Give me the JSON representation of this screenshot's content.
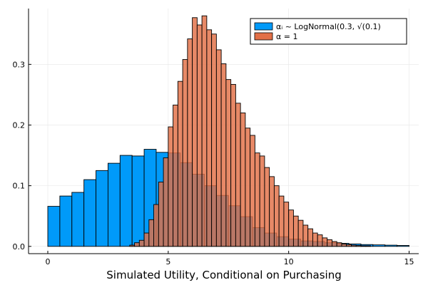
{
  "chart_data": {
    "type": "bar",
    "title": "",
    "xlabel": "Simulated Utility, Conditional on Purchasing",
    "ylabel": "",
    "xlim": [
      -0.8,
      15.4
    ],
    "ylim": [
      -0.012,
      0.392
    ],
    "xticks": [
      0,
      5,
      10,
      15
    ],
    "xtick_labels": [
      "0",
      "5",
      "10",
      "15"
    ],
    "yticks": [
      0.0,
      0.1,
      0.2,
      0.3
    ],
    "ytick_labels": [
      "0.0",
      "0.1",
      "0.2",
      "0.3"
    ],
    "grid": true,
    "legend_position": "top-right",
    "series": [
      {
        "name": "αᵢ ~ LogNormal(0.3, √(0.1)",
        "color": "#009af9",
        "bin_width": 0.5,
        "bin_start": 0.0,
        "values": [
          0.066,
          0.083,
          0.089,
          0.11,
          0.125,
          0.137,
          0.15,
          0.149,
          0.16,
          0.155,
          0.154,
          0.138,
          0.119,
          0.1,
          0.084,
          0.067,
          0.049,
          0.031,
          0.022,
          0.016,
          0.012,
          0.009,
          0.008,
          0.006,
          0.005,
          0.004,
          0.003,
          0.0025,
          0.002,
          0.0015
        ]
      },
      {
        "name": "α = 1",
        "color": "#e26f46",
        "bin_width": 0.2,
        "bin_start": 3.4,
        "values": [
          0.002,
          0.006,
          0.01,
          0.022,
          0.044,
          0.069,
          0.106,
          0.146,
          0.197,
          0.233,
          0.272,
          0.308,
          0.342,
          0.377,
          0.365,
          0.38,
          0.357,
          0.35,
          0.324,
          0.301,
          0.275,
          0.267,
          0.236,
          0.22,
          0.195,
          0.183,
          0.154,
          0.149,
          0.13,
          0.115,
          0.1,
          0.083,
          0.073,
          0.06,
          0.05,
          0.043,
          0.035,
          0.029,
          0.022,
          0.019,
          0.014,
          0.011,
          0.008,
          0.006,
          0.004,
          0.003,
          0.002,
          0.0015,
          0.001,
          0.001
        ]
      }
    ]
  }
}
